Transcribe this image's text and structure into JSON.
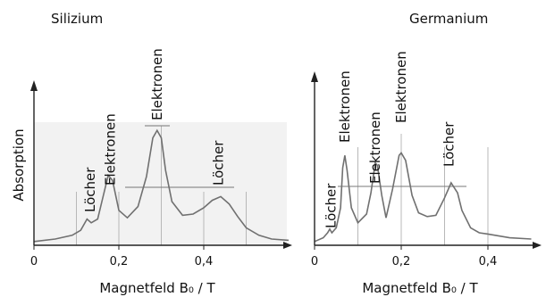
{
  "chart_data": [
    {
      "type": "line",
      "title": "Silizium",
      "xlabel": "Magnetfeld B₀ / T",
      "ylabel": "Absorption",
      "xlim": [
        0,
        0.6
      ],
      "x_ticks": [
        {
          "value": 0,
          "label": "0"
        },
        {
          "value": 0.2,
          "label": "0,2"
        },
        {
          "value": 0.4,
          "label": "0,4"
        }
      ],
      "y_ticks": [],
      "grid": false,
      "series": [
        {
          "x": [
            0,
            0.05,
            0.09,
            0.11,
            0.125,
            0.135,
            0.15,
            0.16,
            0.175,
            0.185,
            0.2,
            0.22,
            0.245,
            0.265,
            0.28,
            0.29,
            0.3,
            0.31,
            0.325,
            0.35,
            0.375,
            0.4,
            0.42,
            0.44,
            0.46,
            0.48,
            0.5,
            0.53,
            0.56,
            0.6
          ],
          "values": [
            0.03,
            0.05,
            0.08,
            0.12,
            0.21,
            0.18,
            0.21,
            0.35,
            0.56,
            0.52,
            0.28,
            0.22,
            0.31,
            0.55,
            0.86,
            0.92,
            0.86,
            0.6,
            0.35,
            0.24,
            0.25,
            0.3,
            0.36,
            0.39,
            0.33,
            0.23,
            0.14,
            0.08,
            0.05,
            0.04
          ]
        }
      ],
      "annotations": [
        {
          "text": "Löcher",
          "x": 0.133
        },
        {
          "text": "Elektronen",
          "x": 0.18
        },
        {
          "text": "Elektronen",
          "x": 0.29
        },
        {
          "text": "Löcher",
          "x": 0.435
        }
      ]
    },
    {
      "type": "line",
      "title": "Germanium",
      "xlabel": "Magnetfeld B₀ / T",
      "ylabel": "",
      "xlim": [
        0,
        0.5
      ],
      "x_ticks": [
        {
          "value": 0,
          "label": "0"
        },
        {
          "value": 0.2,
          "label": "0,2"
        },
        {
          "value": 0.4,
          "label": "0,4"
        }
      ],
      "y_ticks": [],
      "grid": false,
      "series": [
        {
          "x": [
            0,
            0.02,
            0.03,
            0.035,
            0.04,
            0.05,
            0.06,
            0.065,
            0.07,
            0.075,
            0.085,
            0.1,
            0.12,
            0.13,
            0.14,
            0.145,
            0.155,
            0.165,
            0.18,
            0.195,
            0.2,
            0.21,
            0.225,
            0.24,
            0.26,
            0.28,
            0.3,
            0.315,
            0.33,
            0.34,
            0.36,
            0.38,
            0.4,
            0.45,
            0.5
          ],
          "values": [
            0.03,
            0.06,
            0.1,
            0.13,
            0.1,
            0.14,
            0.3,
            0.62,
            0.72,
            0.6,
            0.3,
            0.18,
            0.25,
            0.42,
            0.66,
            0.64,
            0.4,
            0.22,
            0.45,
            0.72,
            0.74,
            0.68,
            0.4,
            0.26,
            0.23,
            0.24,
            0.38,
            0.5,
            0.42,
            0.28,
            0.14,
            0.1,
            0.09,
            0.06,
            0.05
          ]
        }
      ],
      "annotations": [
        {
          "text": "Löcher",
          "x": 0.038
        },
        {
          "text": "Elektronen",
          "x": 0.07
        },
        {
          "text": "Elektronen",
          "x": 0.14
        },
        {
          "text": "Elektronen",
          "x": 0.2
        },
        {
          "text": "Löcher",
          "x": 0.31
        }
      ]
    }
  ],
  "colors": {
    "curve": "#707070",
    "axis": "#222222",
    "marker_line": "#b8b8b8",
    "shade": "#f2f2f2"
  }
}
